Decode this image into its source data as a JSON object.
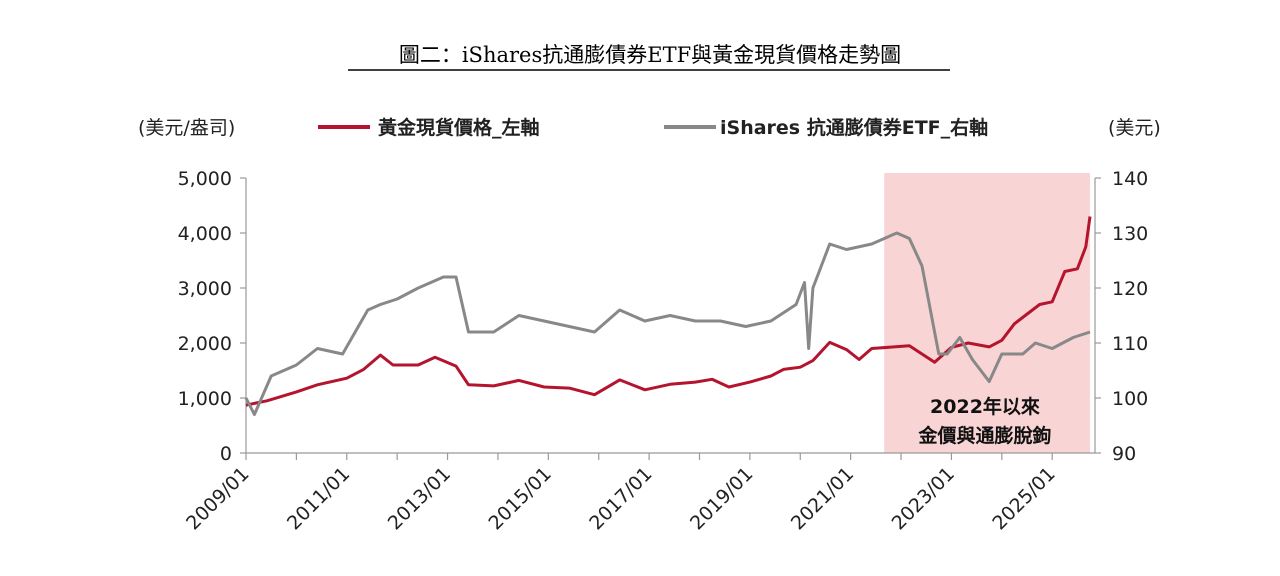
{
  "chart_data": {
    "type": "line",
    "title": "圖二：iShares抗通膨債券ETF與黃金現貨價格走勢圖",
    "y_left_label": "(美元/盎司)",
    "y_right_label": "(美元)",
    "y_left_ticks": [
      "5,000",
      "4,000",
      "3,000",
      "2,000",
      "1,000",
      "0"
    ],
    "y_right_ticks": [
      "140",
      "130",
      "120",
      "110",
      "100",
      "90"
    ],
    "y_left_lim": [
      0,
      5000
    ],
    "y_right_lim": [
      90,
      140
    ],
    "x_ticks": [
      "2009/01",
      "2011/01",
      "2013/01",
      "2015/01",
      "2017/01",
      "2019/01",
      "2021/01",
      "2023/01",
      "2025/01"
    ],
    "x_lim": [
      "2009-01",
      "2025-10"
    ],
    "grid": false,
    "legend_position": "top",
    "highlight_region": {
      "start": "2021-09",
      "end": "2025-10",
      "color": "#f8d4d4",
      "label_line1": "2022年以來",
      "label_line2": "金價與通膨脫鉤"
    },
    "series": [
      {
        "name": "黃金現貨價格_左軸",
        "axis": "left",
        "color": "#b5142e",
        "x": [
          "2009-01",
          "2009-06",
          "2010-01",
          "2010-06",
          "2011-01",
          "2011-05",
          "2011-09",
          "2011-12",
          "2012-06",
          "2012-10",
          "2013-03",
          "2013-06",
          "2013-12",
          "2014-06",
          "2014-12",
          "2015-06",
          "2015-12",
          "2016-06",
          "2016-12",
          "2017-06",
          "2017-12",
          "2018-04",
          "2018-08",
          "2019-01",
          "2019-06",
          "2019-09",
          "2020-01",
          "2020-04",
          "2020-08",
          "2020-12",
          "2021-03",
          "2021-06",
          "2022-03",
          "2022-09",
          "2023-01",
          "2023-05",
          "2023-10",
          "2024-01",
          "2024-04",
          "2024-10",
          "2025-01",
          "2025-04",
          "2025-07",
          "2025-09",
          "2025-10"
        ],
        "values": [
          870,
          950,
          1110,
          1240,
          1360,
          1520,
          1780,
          1600,
          1600,
          1740,
          1580,
          1240,
          1220,
          1320,
          1200,
          1180,
          1060,
          1330,
          1150,
          1250,
          1290,
          1340,
          1200,
          1290,
          1400,
          1520,
          1560,
          1680,
          2010,
          1880,
          1700,
          1900,
          1950,
          1650,
          1920,
          2000,
          1930,
          2050,
          2350,
          2700,
          2750,
          3300,
          3350,
          3750,
          4300
        ]
      },
      {
        "name": "iShares 抗通膨債券ETF_右軸",
        "axis": "right",
        "color": "#888888",
        "x": [
          "2009-01",
          "2009-03",
          "2009-07",
          "2010-01",
          "2010-06",
          "2010-12",
          "2011-06",
          "2011-09",
          "2012-01",
          "2012-06",
          "2012-12",
          "2013-03",
          "2013-06",
          "2013-12",
          "2014-06",
          "2014-12",
          "2015-06",
          "2015-12",
          "2016-06",
          "2016-12",
          "2017-06",
          "2017-12",
          "2018-06",
          "2018-12",
          "2019-06",
          "2019-12",
          "2020-02",
          "2020-03",
          "2020-04",
          "2020-08",
          "2020-12",
          "2021-06",
          "2021-12",
          "2022-03",
          "2022-06",
          "2022-10",
          "2022-12",
          "2023-03",
          "2023-06",
          "2023-10",
          "2024-01",
          "2024-06",
          "2024-09",
          "2025-01",
          "2025-06",
          "2025-10"
        ],
        "values": [
          100,
          97,
          104,
          106,
          109,
          108,
          116,
          117,
          118,
          120,
          122,
          122,
          112,
          112,
          115,
          114,
          113,
          112,
          116,
          114,
          115,
          114,
          114,
          113,
          114,
          117,
          121,
          109,
          120,
          128,
          127,
          128,
          130,
          129,
          124,
          108,
          108,
          111,
          107,
          103,
          108,
          108,
          110,
          109,
          111,
          112
        ]
      }
    ]
  }
}
